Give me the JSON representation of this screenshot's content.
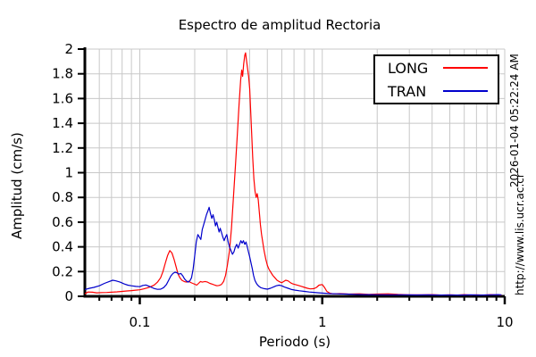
{
  "title": "Espectro de amplitud Rectoria",
  "axes": {
    "x": {
      "label": "Periodo (s)",
      "scale": "log",
      "major_ticks": [
        {
          "value": 0.1,
          "label": "0.1"
        },
        {
          "value": 1,
          "label": "1"
        },
        {
          "value": 10,
          "label": "10"
        }
      ]
    },
    "y": {
      "label": "Amplitud (cm/s)",
      "ticks": [
        {
          "value": 0,
          "label": "0"
        },
        {
          "value": 0.2,
          "label": "0.2"
        },
        {
          "value": 0.4,
          "label": "0.4"
        },
        {
          "value": 0.6,
          "label": "0.6"
        },
        {
          "value": 0.8,
          "label": "0.8"
        },
        {
          "value": 1,
          "label": "1"
        },
        {
          "value": 1.2,
          "label": "1.2"
        },
        {
          "value": 1.4,
          "label": "1.4"
        },
        {
          "value": 1.6,
          "label": "1.6"
        },
        {
          "value": 1.8,
          "label": "1.8"
        },
        {
          "value": 2,
          "label": "2"
        }
      ]
    }
  },
  "legend": {
    "items": [
      {
        "label": "LONG",
        "color": "#ff0000"
      },
      {
        "label": "TRAN",
        "color": "#0000cc"
      }
    ]
  },
  "watermarks": {
    "datetime": "2026-01-04 05:22:24 AM",
    "url": "http://www.lis.ucr.ac.cr"
  },
  "colors": {
    "grid": "#c8c8c8",
    "axis": "#000000",
    "long": "#ff0000",
    "tran": "#0000cc"
  },
  "chart_data": {
    "type": "line",
    "title": "Espectro de amplitud Rectoria",
    "xlabel": "Periodo (s)",
    "ylabel": "Amplitud (cm/s)",
    "xscale": "log",
    "xlim": [
      0.05,
      10
    ],
    "ylim": [
      0,
      2
    ],
    "grid": true,
    "legend_position": "top-right",
    "series": [
      {
        "name": "LONG",
        "color": "#ff0000",
        "points": [
          [
            0.05,
            0.02
          ],
          [
            0.052,
            0.035
          ],
          [
            0.055,
            0.033
          ],
          [
            0.058,
            0.028
          ],
          [
            0.062,
            0.03
          ],
          [
            0.066,
            0.031
          ],
          [
            0.07,
            0.033
          ],
          [
            0.075,
            0.036
          ],
          [
            0.08,
            0.04
          ],
          [
            0.085,
            0.043
          ],
          [
            0.09,
            0.046
          ],
          [
            0.095,
            0.05
          ],
          [
            0.1,
            0.053
          ],
          [
            0.105,
            0.06
          ],
          [
            0.11,
            0.068
          ],
          [
            0.115,
            0.078
          ],
          [
            0.12,
            0.092
          ],
          [
            0.125,
            0.115
          ],
          [
            0.13,
            0.15
          ],
          [
            0.134,
            0.2
          ],
          [
            0.138,
            0.27
          ],
          [
            0.142,
            0.33
          ],
          [
            0.146,
            0.37
          ],
          [
            0.15,
            0.35
          ],
          [
            0.154,
            0.3
          ],
          [
            0.158,
            0.24
          ],
          [
            0.162,
            0.18
          ],
          [
            0.166,
            0.15
          ],
          [
            0.17,
            0.13
          ],
          [
            0.175,
            0.12
          ],
          [
            0.18,
            0.115
          ],
          [
            0.185,
            0.122
          ],
          [
            0.19,
            0.112
          ],
          [
            0.195,
            0.105
          ],
          [
            0.2,
            0.098
          ],
          [
            0.205,
            0.09
          ],
          [
            0.21,
            0.105
          ],
          [
            0.215,
            0.12
          ],
          [
            0.22,
            0.115
          ],
          [
            0.228,
            0.12
          ],
          [
            0.235,
            0.115
          ],
          [
            0.242,
            0.105
          ],
          [
            0.25,
            0.098
          ],
          [
            0.258,
            0.09
          ],
          [
            0.265,
            0.085
          ],
          [
            0.272,
            0.088
          ],
          [
            0.28,
            0.095
          ],
          [
            0.288,
            0.12
          ],
          [
            0.295,
            0.17
          ],
          [
            0.302,
            0.25
          ],
          [
            0.31,
            0.37
          ],
          [
            0.318,
            0.55
          ],
          [
            0.326,
            0.8
          ],
          [
            0.334,
            1.05
          ],
          [
            0.342,
            1.3
          ],
          [
            0.35,
            1.55
          ],
          [
            0.357,
            1.75
          ],
          [
            0.362,
            1.83
          ],
          [
            0.366,
            1.78
          ],
          [
            0.371,
            1.88
          ],
          [
            0.376,
            1.95
          ],
          [
            0.38,
            1.97
          ],
          [
            0.385,
            1.9
          ],
          [
            0.39,
            1.84
          ],
          [
            0.395,
            1.78
          ],
          [
            0.4,
            1.68
          ],
          [
            0.405,
            1.5
          ],
          [
            0.41,
            1.32
          ],
          [
            0.416,
            1.12
          ],
          [
            0.422,
            0.95
          ],
          [
            0.428,
            0.85
          ],
          [
            0.434,
            0.8
          ],
          [
            0.44,
            0.83
          ],
          [
            0.446,
            0.78
          ],
          [
            0.452,
            0.68
          ],
          [
            0.458,
            0.58
          ],
          [
            0.465,
            0.5
          ],
          [
            0.472,
            0.44
          ],
          [
            0.48,
            0.37
          ],
          [
            0.49,
            0.3
          ],
          [
            0.5,
            0.25
          ],
          [
            0.51,
            0.22
          ],
          [
            0.52,
            0.2
          ],
          [
            0.535,
            0.17
          ],
          [
            0.55,
            0.15
          ],
          [
            0.565,
            0.13
          ],
          [
            0.58,
            0.12
          ],
          [
            0.6,
            0.11
          ],
          [
            0.615,
            0.12
          ],
          [
            0.63,
            0.13
          ],
          [
            0.65,
            0.125
          ],
          [
            0.67,
            0.11
          ],
          [
            0.69,
            0.1
          ],
          [
            0.71,
            0.095
          ],
          [
            0.74,
            0.088
          ],
          [
            0.77,
            0.08
          ],
          [
            0.8,
            0.072
          ],
          [
            0.83,
            0.065
          ],
          [
            0.86,
            0.06
          ],
          [
            0.9,
            0.062
          ],
          [
            0.93,
            0.072
          ],
          [
            0.96,
            0.09
          ],
          [
            1.0,
            0.095
          ],
          [
            1.03,
            0.07
          ],
          [
            1.06,
            0.04
          ],
          [
            1.1,
            0.025
          ],
          [
            1.15,
            0.02
          ],
          [
            1.25,
            0.022
          ],
          [
            1.4,
            0.018
          ],
          [
            1.6,
            0.02
          ],
          [
            1.8,
            0.015
          ],
          [
            2.0,
            0.018
          ],
          [
            2.3,
            0.02
          ],
          [
            2.6,
            0.015
          ],
          [
            3.0,
            0.012
          ],
          [
            3.5,
            0.012
          ],
          [
            4.0,
            0.014
          ],
          [
            4.5,
            0.01
          ],
          [
            5.0,
            0.012
          ],
          [
            5.5,
            0.01
          ],
          [
            6.0,
            0.014
          ],
          [
            6.5,
            0.01
          ],
          [
            7.0,
            0.012
          ],
          [
            7.7,
            0.01
          ],
          [
            8.4,
            0.014
          ],
          [
            9.0,
            0.012
          ],
          [
            9.6,
            0.01
          ]
        ]
      },
      {
        "name": "TRAN",
        "color": "#0000cc",
        "points": [
          [
            0.05,
            0.055
          ],
          [
            0.053,
            0.065
          ],
          [
            0.056,
            0.072
          ],
          [
            0.06,
            0.085
          ],
          [
            0.064,
            0.105
          ],
          [
            0.068,
            0.12
          ],
          [
            0.071,
            0.13
          ],
          [
            0.074,
            0.125
          ],
          [
            0.078,
            0.115
          ],
          [
            0.082,
            0.1
          ],
          [
            0.086,
            0.09
          ],
          [
            0.09,
            0.085
          ],
          [
            0.095,
            0.08
          ],
          [
            0.1,
            0.078
          ],
          [
            0.104,
            0.088
          ],
          [
            0.108,
            0.092
          ],
          [
            0.112,
            0.082
          ],
          [
            0.116,
            0.072
          ],
          [
            0.12,
            0.063
          ],
          [
            0.125,
            0.056
          ],
          [
            0.13,
            0.058
          ],
          [
            0.135,
            0.07
          ],
          [
            0.14,
            0.095
          ],
          [
            0.144,
            0.13
          ],
          [
            0.148,
            0.165
          ],
          [
            0.152,
            0.185
          ],
          [
            0.156,
            0.195
          ],
          [
            0.16,
            0.19
          ],
          [
            0.164,
            0.18
          ],
          [
            0.168,
            0.185
          ],
          [
            0.172,
            0.165
          ],
          [
            0.176,
            0.14
          ],
          [
            0.18,
            0.125
          ],
          [
            0.184,
            0.115
          ],
          [
            0.188,
            0.125
          ],
          [
            0.192,
            0.15
          ],
          [
            0.196,
            0.22
          ],
          [
            0.2,
            0.33
          ],
          [
            0.204,
            0.44
          ],
          [
            0.208,
            0.5
          ],
          [
            0.212,
            0.48
          ],
          [
            0.216,
            0.46
          ],
          [
            0.22,
            0.54
          ],
          [
            0.224,
            0.58
          ],
          [
            0.228,
            0.62
          ],
          [
            0.232,
            0.66
          ],
          [
            0.236,
            0.69
          ],
          [
            0.24,
            0.72
          ],
          [
            0.244,
            0.67
          ],
          [
            0.248,
            0.63
          ],
          [
            0.252,
            0.66
          ],
          [
            0.256,
            0.62
          ],
          [
            0.26,
            0.57
          ],
          [
            0.264,
            0.6
          ],
          [
            0.268,
            0.56
          ],
          [
            0.272,
            0.52
          ],
          [
            0.276,
            0.55
          ],
          [
            0.28,
            0.52
          ],
          [
            0.285,
            0.48
          ],
          [
            0.29,
            0.45
          ],
          [
            0.295,
            0.48
          ],
          [
            0.3,
            0.5
          ],
          [
            0.305,
            0.44
          ],
          [
            0.31,
            0.4
          ],
          [
            0.316,
            0.37
          ],
          [
            0.322,
            0.34
          ],
          [
            0.328,
            0.36
          ],
          [
            0.334,
            0.4
          ],
          [
            0.34,
            0.42
          ],
          [
            0.346,
            0.39
          ],
          [
            0.352,
            0.42
          ],
          [
            0.358,
            0.45
          ],
          [
            0.364,
            0.43
          ],
          [
            0.37,
            0.45
          ],
          [
            0.376,
            0.42
          ],
          [
            0.382,
            0.44
          ],
          [
            0.388,
            0.4
          ],
          [
            0.394,
            0.36
          ],
          [
            0.4,
            0.32
          ],
          [
            0.407,
            0.27
          ],
          [
            0.414,
            0.22
          ],
          [
            0.42,
            0.17
          ],
          [
            0.427,
            0.13
          ],
          [
            0.434,
            0.11
          ],
          [
            0.44,
            0.095
          ],
          [
            0.45,
            0.08
          ],
          [
            0.46,
            0.07
          ],
          [
            0.48,
            0.062
          ],
          [
            0.5,
            0.058
          ],
          [
            0.52,
            0.065
          ],
          [
            0.54,
            0.075
          ],
          [
            0.56,
            0.085
          ],
          [
            0.58,
            0.09
          ],
          [
            0.6,
            0.085
          ],
          [
            0.62,
            0.075
          ],
          [
            0.65,
            0.065
          ],
          [
            0.68,
            0.055
          ],
          [
            0.71,
            0.05
          ],
          [
            0.75,
            0.045
          ],
          [
            0.8,
            0.04
          ],
          [
            0.85,
            0.035
          ],
          [
            0.9,
            0.032
          ],
          [
            0.96,
            0.028
          ],
          [
            1.0,
            0.026
          ],
          [
            1.1,
            0.022
          ],
          [
            1.2,
            0.02
          ],
          [
            1.35,
            0.018
          ],
          [
            1.5,
            0.016
          ],
          [
            1.7,
            0.014
          ],
          [
            2.0,
            0.013
          ],
          [
            2.4,
            0.012
          ],
          [
            2.8,
            0.012
          ],
          [
            3.3,
            0.011
          ],
          [
            3.8,
            0.012
          ],
          [
            4.4,
            0.01
          ],
          [
            5.0,
            0.011
          ],
          [
            5.7,
            0.01
          ],
          [
            6.5,
            0.012
          ],
          [
            7.4,
            0.01
          ],
          [
            8.4,
            0.012
          ],
          [
            9.2,
            0.014
          ],
          [
            9.6,
            0.012
          ]
        ]
      }
    ]
  }
}
